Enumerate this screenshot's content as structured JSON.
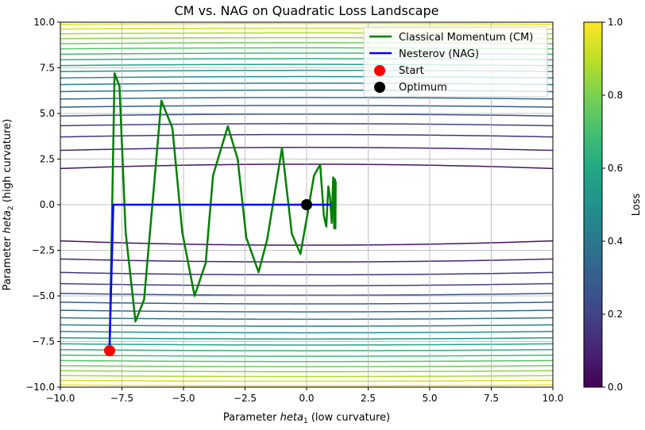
{
  "chart_data": {
    "type": "line",
    "title": "CM vs. NAG on Quadratic Loss Landscape",
    "xlabel": "Parameter heta1 (low curvature)",
    "xlabel_main": "Parameter ",
    "xlabel_symbol": "heta",
    "xlabel_sub": "1",
    "xlabel_tail": " (low curvature)",
    "ylabel": "Parameter heta2 (high curvature)",
    "ylabel_main": "Parameter ",
    "ylabel_symbol": "heta",
    "ylabel_sub": "2",
    "ylabel_tail": " (high curvature)",
    "xlim": [
      -10,
      10
    ],
    "ylim": [
      -10,
      10
    ],
    "xticks": [
      -10,
      -7.5,
      -5,
      -2.5,
      0,
      2.5,
      5,
      7.5,
      10
    ],
    "xtick_labels": [
      "−10.0",
      "−7.5",
      "−5.0",
      "−2.5",
      "0.0",
      "2.5",
      "5.0",
      "7.5",
      "10.0"
    ],
    "yticks": [
      -10,
      -7.5,
      -5,
      -2.5,
      0,
      2.5,
      5,
      7.5,
      10
    ],
    "ytick_labels": [
      "−10.0",
      "−7.5",
      "−5.0",
      "−2.5",
      "0.0",
      "2.5",
      "5.0",
      "7.5",
      "10.0"
    ],
    "grid": true,
    "legend_placement": "top-right",
    "contour_function": "0.5*(0.01*x^2 + y^2) normalized",
    "contour_levels": 20,
    "colorbar": {
      "label": "Loss",
      "colormap": "viridis",
      "range": [
        0.0,
        1.0
      ],
      "ticks": [
        0.0,
        0.2,
        0.4,
        0.6,
        0.8,
        1.0
      ],
      "tick_labels": [
        "0.0",
        "0.2",
        "0.4",
        "0.6",
        "0.8",
        "1.0"
      ]
    },
    "series": [
      {
        "name": "Classical Momentum (CM)",
        "color": "#008000",
        "x": [
          -8,
          -7.8,
          -7.6,
          -7.35,
          -6.95,
          -6.6,
          -6.2,
          -5.9,
          -5.45,
          -5.05,
          -4.55,
          -4.1,
          -3.8,
          -3.2,
          -2.8,
          -2.45,
          -1.95,
          -1.6,
          -1.0,
          -0.6,
          -0.25,
          0.05,
          0.3,
          0.55,
          0.7,
          0.8,
          0.88,
          0.95,
          1.02,
          1.08,
          1.12,
          1.15,
          1.17,
          1.18
        ],
        "y": [
          -8,
          7.2,
          6.5,
          -1.5,
          -6.4,
          -5.2,
          1.0,
          5.7,
          4.2,
          -1.5,
          -5.0,
          -3.2,
          1.6,
          4.3,
          2.5,
          -1.8,
          -3.7,
          -1.9,
          3.1,
          -1.6,
          -2.7,
          -0.4,
          1.6,
          2.2,
          -0.6,
          -1.2,
          1.0,
          0.4,
          -1.0,
          1.5,
          -1.3,
          1.4,
          -1.3,
          1.3
        ]
      },
      {
        "name": "Nesterov (NAG)",
        "color": "#0000ff",
        "x": [
          -8,
          -8,
          -7.85,
          -6,
          -4,
          -2,
          0,
          1
        ],
        "y": [
          -8,
          -7.6,
          0,
          0,
          0,
          0,
          0,
          0
        ]
      }
    ],
    "markers": [
      {
        "name": "Start",
        "x": -8,
        "y": -8,
        "color": "#ff0000"
      },
      {
        "name": "Optimum",
        "x": 0,
        "y": 0,
        "color": "#000000"
      }
    ]
  }
}
